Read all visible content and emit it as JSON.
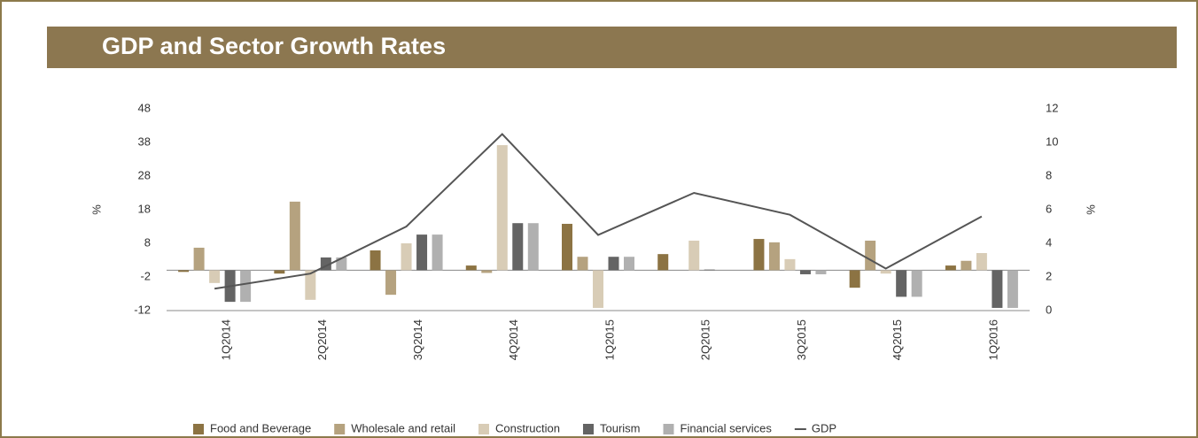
{
  "chart_data": {
    "type": "bar",
    "title": "GDP and Sector Growth Rates",
    "categories": [
      "1Q2014",
      "2Q2014",
      "3Q2014",
      "4Q2014",
      "1Q2015",
      "2Q2015",
      "3Q2015",
      "4Q2015",
      "1Q2016"
    ],
    "ylabel": "%",
    "y2label": "%",
    "ylim": [
      -12,
      48
    ],
    "yticks": [
      -12,
      -2,
      8,
      18,
      28,
      38,
      48
    ],
    "y2lim": [
      0,
      12
    ],
    "y2ticks": [
      0,
      2,
      4,
      6,
      8,
      10,
      12
    ],
    "series": [
      {
        "name": "Food and Beverage",
        "color": "#8c7343",
        "values": [
          -0.5,
          -1,
          5.9,
          1.4,
          13.8,
          4.8,
          9.3,
          -5.2,
          1.4
        ]
      },
      {
        "name": "Wholesale and retail",
        "color": "#b5a27f",
        "values": [
          6.7,
          20.4,
          -7.3,
          -0.8,
          4,
          0,
          8.3,
          8.8,
          2.8
        ]
      },
      {
        "name": "Construction",
        "color": "#d8ccb6",
        "values": [
          -3.8,
          -8.8,
          8,
          37.2,
          -11.2,
          8.8,
          3.3,
          -1,
          5.1
        ]
      },
      {
        "name": "Tourism",
        "color": "#646464",
        "values": [
          -9.4,
          3.8,
          10.6,
          14,
          4,
          0.2,
          -1.2,
          -7.9,
          -11.2
        ]
      },
      {
        "name": "Financial services",
        "color": "#b0b0b0",
        "values": [
          -9.4,
          3.8,
          10.6,
          14,
          4,
          0,
          -1.2,
          -7.9,
          -11.2
        ]
      },
      {
        "name": "GDP",
        "color": "#555555",
        "type": "line",
        "axis": "y2",
        "values": [
          1.3,
          2.2,
          5,
          10.5,
          4.5,
          7,
          5.7,
          2.5,
          5.6
        ]
      }
    ]
  }
}
